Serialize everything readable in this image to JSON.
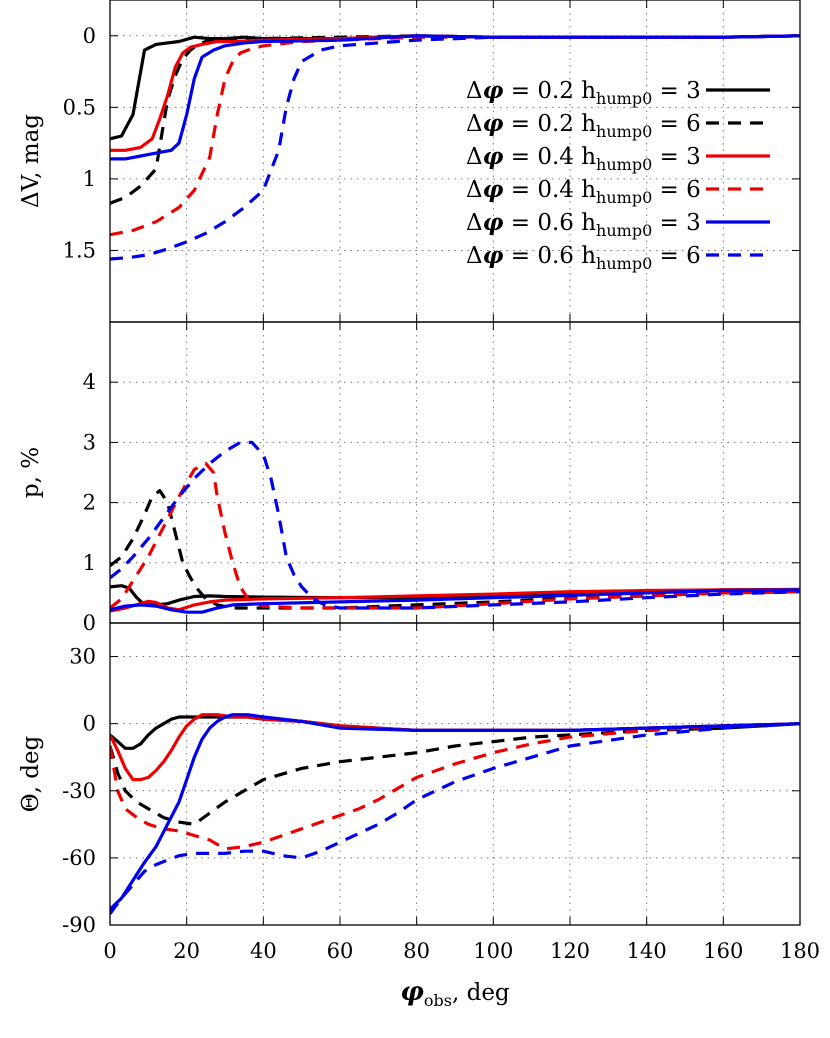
{
  "chart_data": [
    {
      "type": "line",
      "panel": "top",
      "ylabel": "ΔV, mag",
      "y_inverted": true,
      "ylim": [
        2.0,
        -0.25
      ],
      "xlim": [
        0,
        180
      ],
      "yticks": [
        {
          "v": 0,
          "label": "0"
        },
        {
          "v": 0.5,
          "label": "0.5"
        },
        {
          "v": 1,
          "label": "1"
        },
        {
          "v": 1.5,
          "label": "1.5"
        }
      ],
      "grid": true,
      "legend_position": "top-right",
      "series": [
        {
          "key": "s1",
          "color": "#000000",
          "dash": false,
          "x": [
            0,
            3,
            6,
            9,
            12,
            15,
            18,
            22,
            26,
            30,
            35,
            40,
            50,
            60,
            80,
            100,
            120,
            140,
            160,
            180
          ],
          "y": [
            0.72,
            0.7,
            0.55,
            0.1,
            0.06,
            0.05,
            0.04,
            0.01,
            0.02,
            0.02,
            0.01,
            0.02,
            0.02,
            0.02,
            0.0,
            0.01,
            0.01,
            0.01,
            0.01,
            0.0
          ]
        },
        {
          "key": "s2",
          "color": "#000000",
          "dash": true,
          "x": [
            0,
            4,
            8,
            12,
            15,
            17,
            19,
            21,
            23,
            25,
            30,
            40,
            60,
            80,
            100,
            120,
            140,
            160,
            180
          ],
          "y": [
            1.17,
            1.13,
            1.05,
            0.93,
            0.45,
            0.28,
            0.16,
            0.1,
            0.06,
            0.04,
            0.03,
            0.02,
            0.01,
            0.0,
            0.01,
            0.01,
            0.01,
            0.01,
            0.0
          ]
        },
        {
          "key": "s3",
          "color": "#ee0000",
          "dash": false,
          "x": [
            0,
            4,
            8,
            11,
            13,
            15,
            17,
            19,
            21,
            24,
            28,
            33,
            40,
            60,
            80,
            100,
            120,
            140,
            160,
            180
          ],
          "y": [
            0.8,
            0.8,
            0.78,
            0.72,
            0.58,
            0.42,
            0.22,
            0.12,
            0.08,
            0.06,
            0.04,
            0.04,
            0.03,
            0.02,
            0.0,
            0.01,
            0.01,
            0.01,
            0.01,
            0.0
          ]
        },
        {
          "key": "s4",
          "color": "#ee0000",
          "dash": true,
          "x": [
            0,
            6,
            12,
            18,
            22,
            26,
            28,
            30,
            32,
            34,
            37,
            40,
            50,
            60,
            80,
            100,
            120,
            140,
            160,
            180
          ],
          "y": [
            1.39,
            1.36,
            1.3,
            1.2,
            1.08,
            0.85,
            0.55,
            0.3,
            0.18,
            0.12,
            0.09,
            0.07,
            0.04,
            0.03,
            0.01,
            0.01,
            0.01,
            0.01,
            0.01,
            0.0
          ]
        },
        {
          "key": "s5",
          "color": "#0000ee",
          "dash": false,
          "x": [
            0,
            4,
            8,
            12,
            16,
            18,
            20,
            22,
            24,
            27,
            30,
            35,
            40,
            60,
            80,
            100,
            120,
            140,
            160,
            180
          ],
          "y": [
            0.86,
            0.86,
            0.84,
            0.82,
            0.8,
            0.75,
            0.55,
            0.3,
            0.15,
            0.1,
            0.07,
            0.05,
            0.04,
            0.03,
            0.0,
            0.01,
            0.01,
            0.01,
            0.01,
            0.0
          ]
        },
        {
          "key": "s6",
          "color": "#0000ee",
          "dash": true,
          "x": [
            0,
            5,
            10,
            15,
            20,
            25,
            30,
            35,
            40,
            44,
            46,
            48,
            50,
            55,
            60,
            70,
            80,
            100,
            120,
            140,
            160,
            180
          ],
          "y": [
            1.56,
            1.55,
            1.53,
            1.49,
            1.44,
            1.38,
            1.3,
            1.2,
            1.08,
            0.8,
            0.5,
            0.3,
            0.18,
            0.1,
            0.07,
            0.05,
            0.03,
            0.01,
            0.01,
            0.01,
            0.01,
            0.0
          ]
        }
      ],
      "legend": [
        {
          "series": "s1",
          "dphi": "0.2",
          "h": "3"
        },
        {
          "series": "s2",
          "dphi": "0.2",
          "h": "6"
        },
        {
          "series": "s3",
          "dphi": "0.4",
          "h": "3"
        },
        {
          "series": "s4",
          "dphi": "0.4",
          "h": "6"
        },
        {
          "series": "s5",
          "dphi": "0.6",
          "h": "3"
        },
        {
          "series": "s6",
          "dphi": "0.6",
          "h": "6"
        }
      ]
    },
    {
      "type": "line",
      "panel": "middle",
      "ylabel": "p, %",
      "ylim": [
        0,
        5
      ],
      "xlim": [
        0,
        180
      ],
      "yticks": [
        {
          "v": 0,
          "label": "0"
        },
        {
          "v": 1,
          "label": "1"
        },
        {
          "v": 2,
          "label": "2"
        },
        {
          "v": 3,
          "label": "3"
        },
        {
          "v": 4,
          "label": "4"
        }
      ],
      "grid": true,
      "series": [
        {
          "key": "s1",
          "color": "#000000",
          "dash": false,
          "x": [
            0,
            3,
            5,
            7,
            9,
            12,
            15,
            18,
            22,
            26,
            30,
            40,
            60,
            80,
            100,
            120,
            140,
            160,
            180
          ],
          "y": [
            0.6,
            0.62,
            0.58,
            0.42,
            0.3,
            0.3,
            0.32,
            0.38,
            0.44,
            0.45,
            0.44,
            0.43,
            0.42,
            0.42,
            0.45,
            0.5,
            0.52,
            0.55,
            0.55
          ]
        },
        {
          "key": "s2",
          "color": "#000000",
          "dash": true,
          "x": [
            0,
            3,
            6,
            9,
            11,
            13,
            15,
            17,
            19,
            21,
            23,
            25,
            28,
            32,
            40,
            60,
            80,
            100,
            120,
            140,
            160,
            180
          ],
          "y": [
            0.95,
            1.1,
            1.4,
            1.8,
            2.1,
            2.2,
            2.0,
            1.5,
            1.0,
            0.75,
            0.55,
            0.4,
            0.3,
            0.25,
            0.25,
            0.25,
            0.3,
            0.35,
            0.42,
            0.45,
            0.5,
            0.52
          ]
        },
        {
          "key": "s3",
          "color": "#ee0000",
          "dash": false,
          "x": [
            0,
            4,
            8,
            10,
            12,
            15,
            18,
            22,
            26,
            30,
            40,
            60,
            80,
            100,
            120,
            140,
            160,
            180
          ],
          "y": [
            0.2,
            0.25,
            0.32,
            0.36,
            0.34,
            0.25,
            0.22,
            0.3,
            0.35,
            0.38,
            0.4,
            0.42,
            0.45,
            0.48,
            0.52,
            0.54,
            0.55,
            0.56
          ]
        },
        {
          "key": "s4",
          "color": "#ee0000",
          "dash": true,
          "x": [
            0,
            3,
            6,
            10,
            14,
            18,
            22,
            25,
            27,
            28,
            30,
            32,
            34,
            36,
            40,
            50,
            60,
            80,
            100,
            120,
            140,
            160,
            180
          ],
          "y": [
            0.25,
            0.4,
            0.7,
            1.1,
            1.6,
            2.1,
            2.55,
            2.65,
            2.5,
            2.1,
            1.5,
            1.0,
            0.6,
            0.4,
            0.28,
            0.25,
            0.25,
            0.25,
            0.32,
            0.4,
            0.45,
            0.5,
            0.52
          ]
        },
        {
          "key": "s5",
          "color": "#0000ee",
          "dash": false,
          "x": [
            0,
            4,
            8,
            12,
            16,
            20,
            24,
            28,
            32,
            40,
            60,
            80,
            100,
            120,
            140,
            160,
            180
          ],
          "y": [
            0.22,
            0.28,
            0.3,
            0.28,
            0.22,
            0.18,
            0.18,
            0.25,
            0.3,
            0.32,
            0.35,
            0.38,
            0.42,
            0.46,
            0.5,
            0.54,
            0.55
          ]
        },
        {
          "key": "s6",
          "color": "#0000ee",
          "dash": true,
          "x": [
            0,
            3,
            6,
            10,
            14,
            18,
            22,
            26,
            30,
            34,
            37,
            40,
            42,
            44,
            46,
            48,
            50,
            53,
            56,
            60,
            80,
            100,
            120,
            140,
            160,
            180
          ],
          "y": [
            0.75,
            0.9,
            1.1,
            1.4,
            1.75,
            2.1,
            2.4,
            2.65,
            2.85,
            3.0,
            3.0,
            2.8,
            2.4,
            1.8,
            1.1,
            0.8,
            0.6,
            0.4,
            0.3,
            0.25,
            0.25,
            0.3,
            0.35,
            0.42,
            0.48,
            0.52
          ]
        }
      ]
    },
    {
      "type": "line",
      "panel": "bottom",
      "xlabel": "φobs, deg",
      "ylabel": "Θ, deg",
      "ylim": [
        -90,
        45
      ],
      "xlim": [
        0,
        180
      ],
      "xticks": [
        {
          "v": 0,
          "label": "0"
        },
        {
          "v": 20,
          "label": "20"
        },
        {
          "v": 40,
          "label": "40"
        },
        {
          "v": 60,
          "label": "60"
        },
        {
          "v": 80,
          "label": "80"
        },
        {
          "v": 100,
          "label": "100"
        },
        {
          "v": 120,
          "label": "120"
        },
        {
          "v": 140,
          "label": "140"
        },
        {
          "v": 160,
          "label": "160"
        },
        {
          "v": 180,
          "label": "180"
        }
      ],
      "yticks": [
        {
          "v": -90,
          "label": "-90"
        },
        {
          "v": -60,
          "label": "-60"
        },
        {
          "v": -30,
          "label": "-30"
        },
        {
          "v": 0,
          "label": "0"
        },
        {
          "v": 30,
          "label": "30"
        }
      ],
      "grid": true,
      "series": [
        {
          "key": "s1",
          "color": "#000000",
          "dash": false,
          "x": [
            0,
            2,
            4,
            6,
            8,
            10,
            12,
            14,
            16,
            18,
            20,
            24,
            28,
            32,
            36,
            40,
            50,
            60,
            80,
            100,
            120,
            140,
            160,
            180
          ],
          "y": [
            -5,
            -8,
            -11,
            -11,
            -9,
            -5,
            -2,
            0,
            2,
            3,
            3,
            3,
            3,
            3,
            3,
            2,
            1,
            -1,
            -3,
            -3,
            -3,
            -2,
            -1,
            0
          ]
        },
        {
          "key": "s2",
          "color": "#000000",
          "dash": true,
          "x": [
            0,
            2,
            4,
            7,
            10,
            14,
            18,
            22,
            26,
            30,
            35,
            40,
            50,
            60,
            70,
            80,
            90,
            100,
            110,
            120,
            140,
            160,
            180
          ],
          "y": [
            -10,
            -22,
            -30,
            -35,
            -38,
            -42,
            -44,
            -45,
            -40,
            -35,
            -30,
            -25,
            -20,
            -17,
            -15,
            -13,
            -10,
            -8,
            -6,
            -5,
            -3,
            -2,
            0
          ]
        },
        {
          "key": "s3",
          "color": "#ee0000",
          "dash": false,
          "x": [
            0,
            2,
            4,
            6,
            8,
            10,
            12,
            14,
            16,
            18,
            20,
            22,
            24,
            28,
            32,
            36,
            40,
            50,
            60,
            80,
            100,
            120,
            140,
            160,
            180
          ],
          "y": [
            -5,
            -12,
            -20,
            -25,
            -25,
            -24,
            -21,
            -17,
            -12,
            -6,
            -1,
            2,
            4,
            4,
            3,
            3,
            2,
            1,
            -1,
            -3,
            -3,
            -3,
            -2,
            -1,
            0
          ]
        },
        {
          "key": "s4",
          "color": "#ee0000",
          "dash": true,
          "x": [
            0,
            2,
            4,
            7,
            10,
            14,
            18,
            22,
            26,
            30,
            35,
            40,
            45,
            50,
            55,
            60,
            65,
            70,
            75,
            80,
            90,
            100,
            110,
            120,
            140,
            160,
            180
          ],
          "y": [
            -10,
            -30,
            -38,
            -42,
            -45,
            -47,
            -48,
            -50,
            -52,
            -56,
            -55,
            -53,
            -50,
            -47,
            -44,
            -41,
            -38,
            -34,
            -29,
            -24,
            -18,
            -13,
            -9,
            -6,
            -3,
            -1,
            0
          ]
        },
        {
          "key": "s5",
          "color": "#0000ee",
          "dash": false,
          "x": [
            0,
            3,
            6,
            9,
            12,
            15,
            18,
            20,
            22,
            24,
            26,
            28,
            30,
            32,
            34,
            36,
            40,
            50,
            60,
            80,
            100,
            120,
            140,
            160,
            180
          ],
          "y": [
            -83,
            -78,
            -70,
            -62,
            -55,
            -45,
            -35,
            -25,
            -15,
            -7,
            -2,
            1,
            3,
            4,
            4,
            4,
            3,
            1,
            -2,
            -3,
            -3,
            -3,
            -2,
            -1,
            0
          ]
        },
        {
          "key": "s6",
          "color": "#0000ee",
          "dash": true,
          "x": [
            0,
            3,
            6,
            9,
            12,
            15,
            18,
            22,
            26,
            30,
            35,
            40,
            45,
            50,
            55,
            60,
            65,
            70,
            75,
            80,
            90,
            100,
            110,
            120,
            140,
            160,
            180
          ],
          "y": [
            -85,
            -78,
            -72,
            -66,
            -63,
            -61,
            -59,
            -58,
            -58,
            -58,
            -57,
            -57,
            -59,
            -60,
            -57,
            -53,
            -49,
            -45,
            -40,
            -34,
            -26,
            -20,
            -15,
            -10,
            -5,
            -2,
            0
          ]
        }
      ]
    }
  ]
}
